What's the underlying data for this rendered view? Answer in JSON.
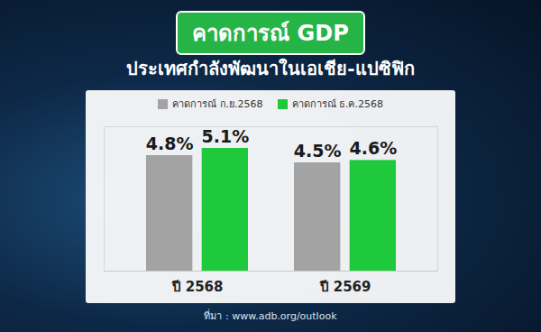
{
  "chart_data": {
    "type": "bar",
    "title": "คาดการณ์ GDP",
    "subtitle": "ประเทศกำลังพัฒนาในเอเชีย-แปซิฟิก",
    "categories": [
      "ปี 2568",
      "ปี 2569"
    ],
    "series": [
      {
        "name": "คาดการณ์ ก.ย.2568",
        "color": "#a3a3a3",
        "values": [
          4.8,
          4.5
        ],
        "value_labels": [
          "4.8%",
          "4.5%"
        ]
      },
      {
        "name": "คาดการณ์ ธ.ค.2568",
        "color": "#1ec93c",
        "values": [
          5.1,
          4.6
        ],
        "value_labels": [
          "5.1%",
          "4.6%"
        ]
      }
    ],
    "ylim": [
      0,
      6
    ],
    "yticks": [
      0
    ],
    "grid": false,
    "legend": "top",
    "data_labels": true,
    "tick_labels": "x",
    "source": "ที่มา : www.adb.org/outlook"
  }
}
